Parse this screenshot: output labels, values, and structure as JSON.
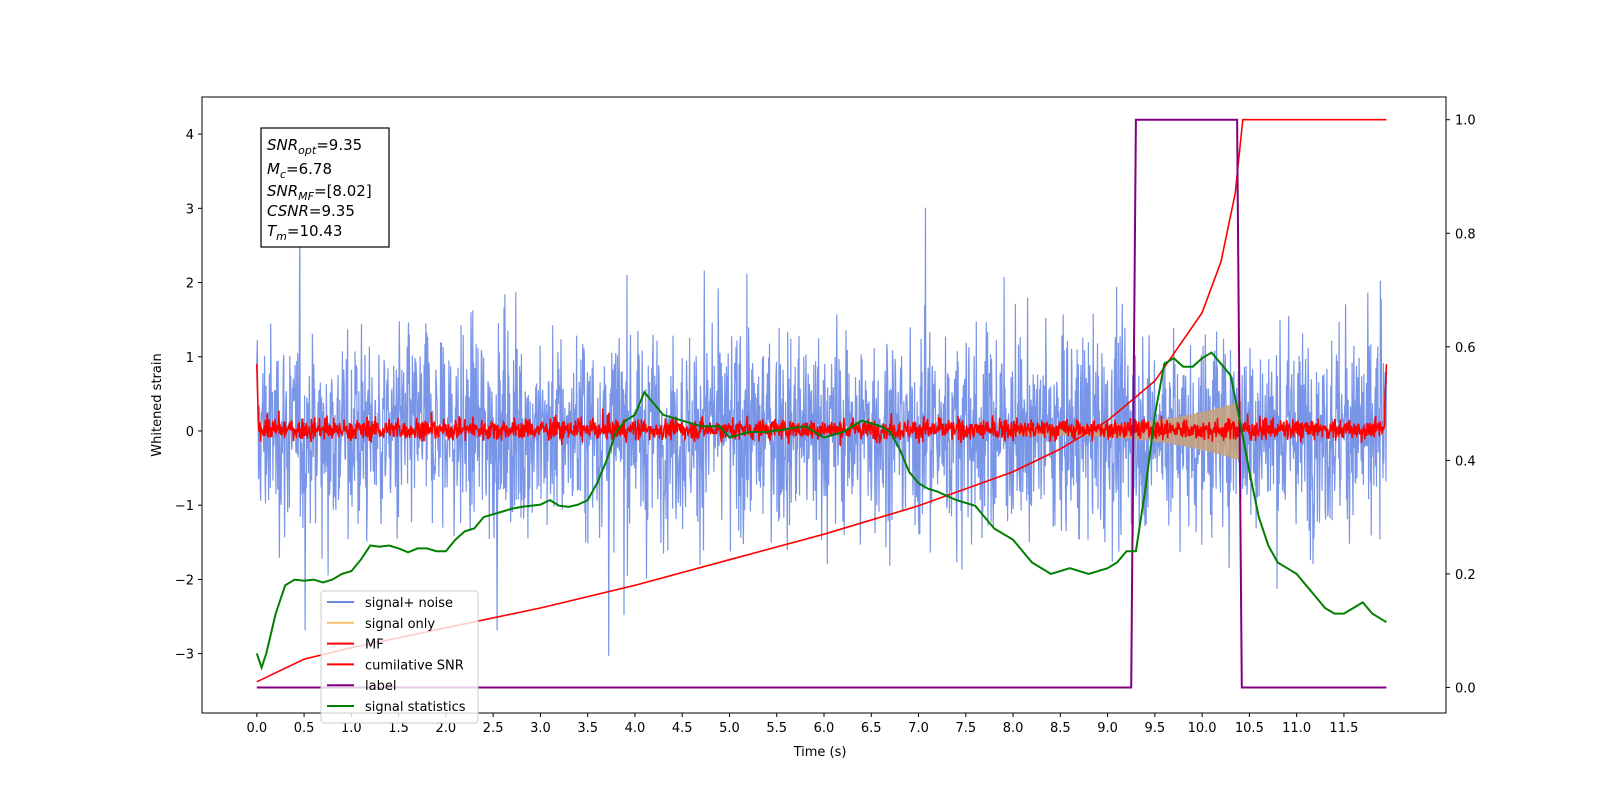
{
  "chart_data": {
    "type": "line",
    "xlabel": "Time (s)",
    "ylabel": "Whitened strain",
    "xlim": [
      -0.58,
      12.58
    ],
    "ylim": [
      -3.8,
      4.5
    ],
    "y2lim": [
      -0.045,
      1.04
    ],
    "x_ticks": [
      "0.0",
      "0.5",
      "1.0",
      "1.5",
      "2.0",
      "2.5",
      "3.0",
      "3.5",
      "4.0",
      "4.5",
      "5.0",
      "5.5",
      "6.0",
      "6.5",
      "7.0",
      "7.5",
      "8.0",
      "8.5",
      "9.0",
      "9.5",
      "10.0",
      "10.5",
      "11.0",
      "11.5"
    ],
    "y_ticks": [
      "4",
      "3",
      "2",
      "1",
      "0",
      "−1",
      "−2",
      "−3"
    ],
    "y2_ticks": [
      "1.0",
      "0.8",
      "0.6",
      "0.4",
      "0.2",
      "0.0"
    ],
    "colors": {
      "signal_noise": "#6a89e5",
      "signal_only": "#f5c16b",
      "signal_envelope_fill": "#c8a27a",
      "mf": "#ff0000",
      "cumulative_snr": "#ff0000",
      "label": "#800080",
      "signal_statistics": "#008000"
    },
    "info_box": {
      "snr_opt_main": "SNR",
      "snr_opt_sub": "opt",
      "snr_opt_value": "=9.35",
      "mc_main": "M",
      "mc_sub": "c",
      "mc_value": "=6.78",
      "snr_mf_main": "SNR",
      "snr_mf_sub": "MF",
      "snr_mf_value": "=[8.02]",
      "csnr_main": "CSNR",
      "csnr_value": "=9.35",
      "tm_main": "T",
      "tm_sub": "m",
      "tm_value": "=10.43"
    },
    "legend": {
      "position": "lower-left",
      "entries": [
        "signal+ noise",
        "signal only",
        "MF",
        "cumilative SNR",
        "label",
        "signal statistics"
      ]
    },
    "series": [
      {
        "name": "label",
        "axis": "right",
        "x": [
          0.0,
          9.25,
          9.3,
          10.37,
          10.42,
          11.95
        ],
        "y": [
          0.0,
          0.0,
          1.0,
          1.0,
          0.0,
          0.0
        ]
      },
      {
        "name": "cumilative SNR",
        "axis": "right",
        "x": [
          0.0,
          0.5,
          1.0,
          2.0,
          3.0,
          4.0,
          5.0,
          6.0,
          7.0,
          8.0,
          8.5,
          9.0,
          9.5,
          10.0,
          10.2,
          10.35,
          10.43,
          11.95
        ],
        "y": [
          0.01,
          0.05,
          0.07,
          0.105,
          0.14,
          0.18,
          0.225,
          0.27,
          0.32,
          0.38,
          0.42,
          0.47,
          0.54,
          0.66,
          0.75,
          0.87,
          1.0,
          1.0
        ]
      },
      {
        "name": "signal statistics",
        "axis": "right",
        "x": [
          0.0,
          0.05,
          0.1,
          0.2,
          0.3,
          0.4,
          0.5,
          0.6,
          0.7,
          0.8,
          0.9,
          1.0,
          1.1,
          1.2,
          1.3,
          1.4,
          1.5,
          1.6,
          1.7,
          1.8,
          1.9,
          2.0,
          2.1,
          2.2,
          2.3,
          2.4,
          2.5,
          2.6,
          2.7,
          2.8,
          2.9,
          3.0,
          3.1,
          3.2,
          3.3,
          3.4,
          3.5,
          3.6,
          3.7,
          3.8,
          3.9,
          4.0,
          4.1,
          4.2,
          4.3,
          4.5,
          4.7,
          4.9,
          5.0,
          5.2,
          5.4,
          5.6,
          5.8,
          6.0,
          6.2,
          6.4,
          6.6,
          6.7,
          6.8,
          6.9,
          7.0,
          7.1,
          7.2,
          7.4,
          7.6,
          7.8,
          8.0,
          8.2,
          8.4,
          8.6,
          8.8,
          9.0,
          9.1,
          9.2,
          9.3,
          9.4,
          9.5,
          9.6,
          9.7,
          9.8,
          9.9,
          10.0,
          10.1,
          10.2,
          10.3,
          10.4,
          10.5,
          10.6,
          10.7,
          10.8,
          10.9,
          11.0,
          11.1,
          11.2,
          11.3,
          11.4,
          11.5,
          11.6,
          11.7,
          11.8,
          11.9,
          11.95
        ],
        "y": [
          0.06,
          0.035,
          0.06,
          0.13,
          0.18,
          0.19,
          0.188,
          0.19,
          0.185,
          0.19,
          0.2,
          0.205,
          0.225,
          0.25,
          0.248,
          0.25,
          0.245,
          0.238,
          0.245,
          0.245,
          0.24,
          0.24,
          0.26,
          0.275,
          0.28,
          0.3,
          0.305,
          0.31,
          0.315,
          0.318,
          0.32,
          0.322,
          0.33,
          0.32,
          0.318,
          0.322,
          0.33,
          0.36,
          0.4,
          0.45,
          0.47,
          0.48,
          0.52,
          0.5,
          0.48,
          0.47,
          0.46,
          0.46,
          0.44,
          0.45,
          0.45,
          0.455,
          0.46,
          0.44,
          0.45,
          0.47,
          0.46,
          0.45,
          0.42,
          0.38,
          0.36,
          0.35,
          0.345,
          0.33,
          0.32,
          0.28,
          0.26,
          0.22,
          0.2,
          0.21,
          0.2,
          0.21,
          0.22,
          0.24,
          0.24,
          0.35,
          0.48,
          0.57,
          0.58,
          0.565,
          0.565,
          0.58,
          0.59,
          0.57,
          0.55,
          0.47,
          0.38,
          0.3,
          0.25,
          0.22,
          0.21,
          0.2,
          0.18,
          0.16,
          0.14,
          0.13,
          0.13,
          0.14,
          0.15,
          0.13,
          0.12,
          0.115
        ]
      }
    ]
  }
}
